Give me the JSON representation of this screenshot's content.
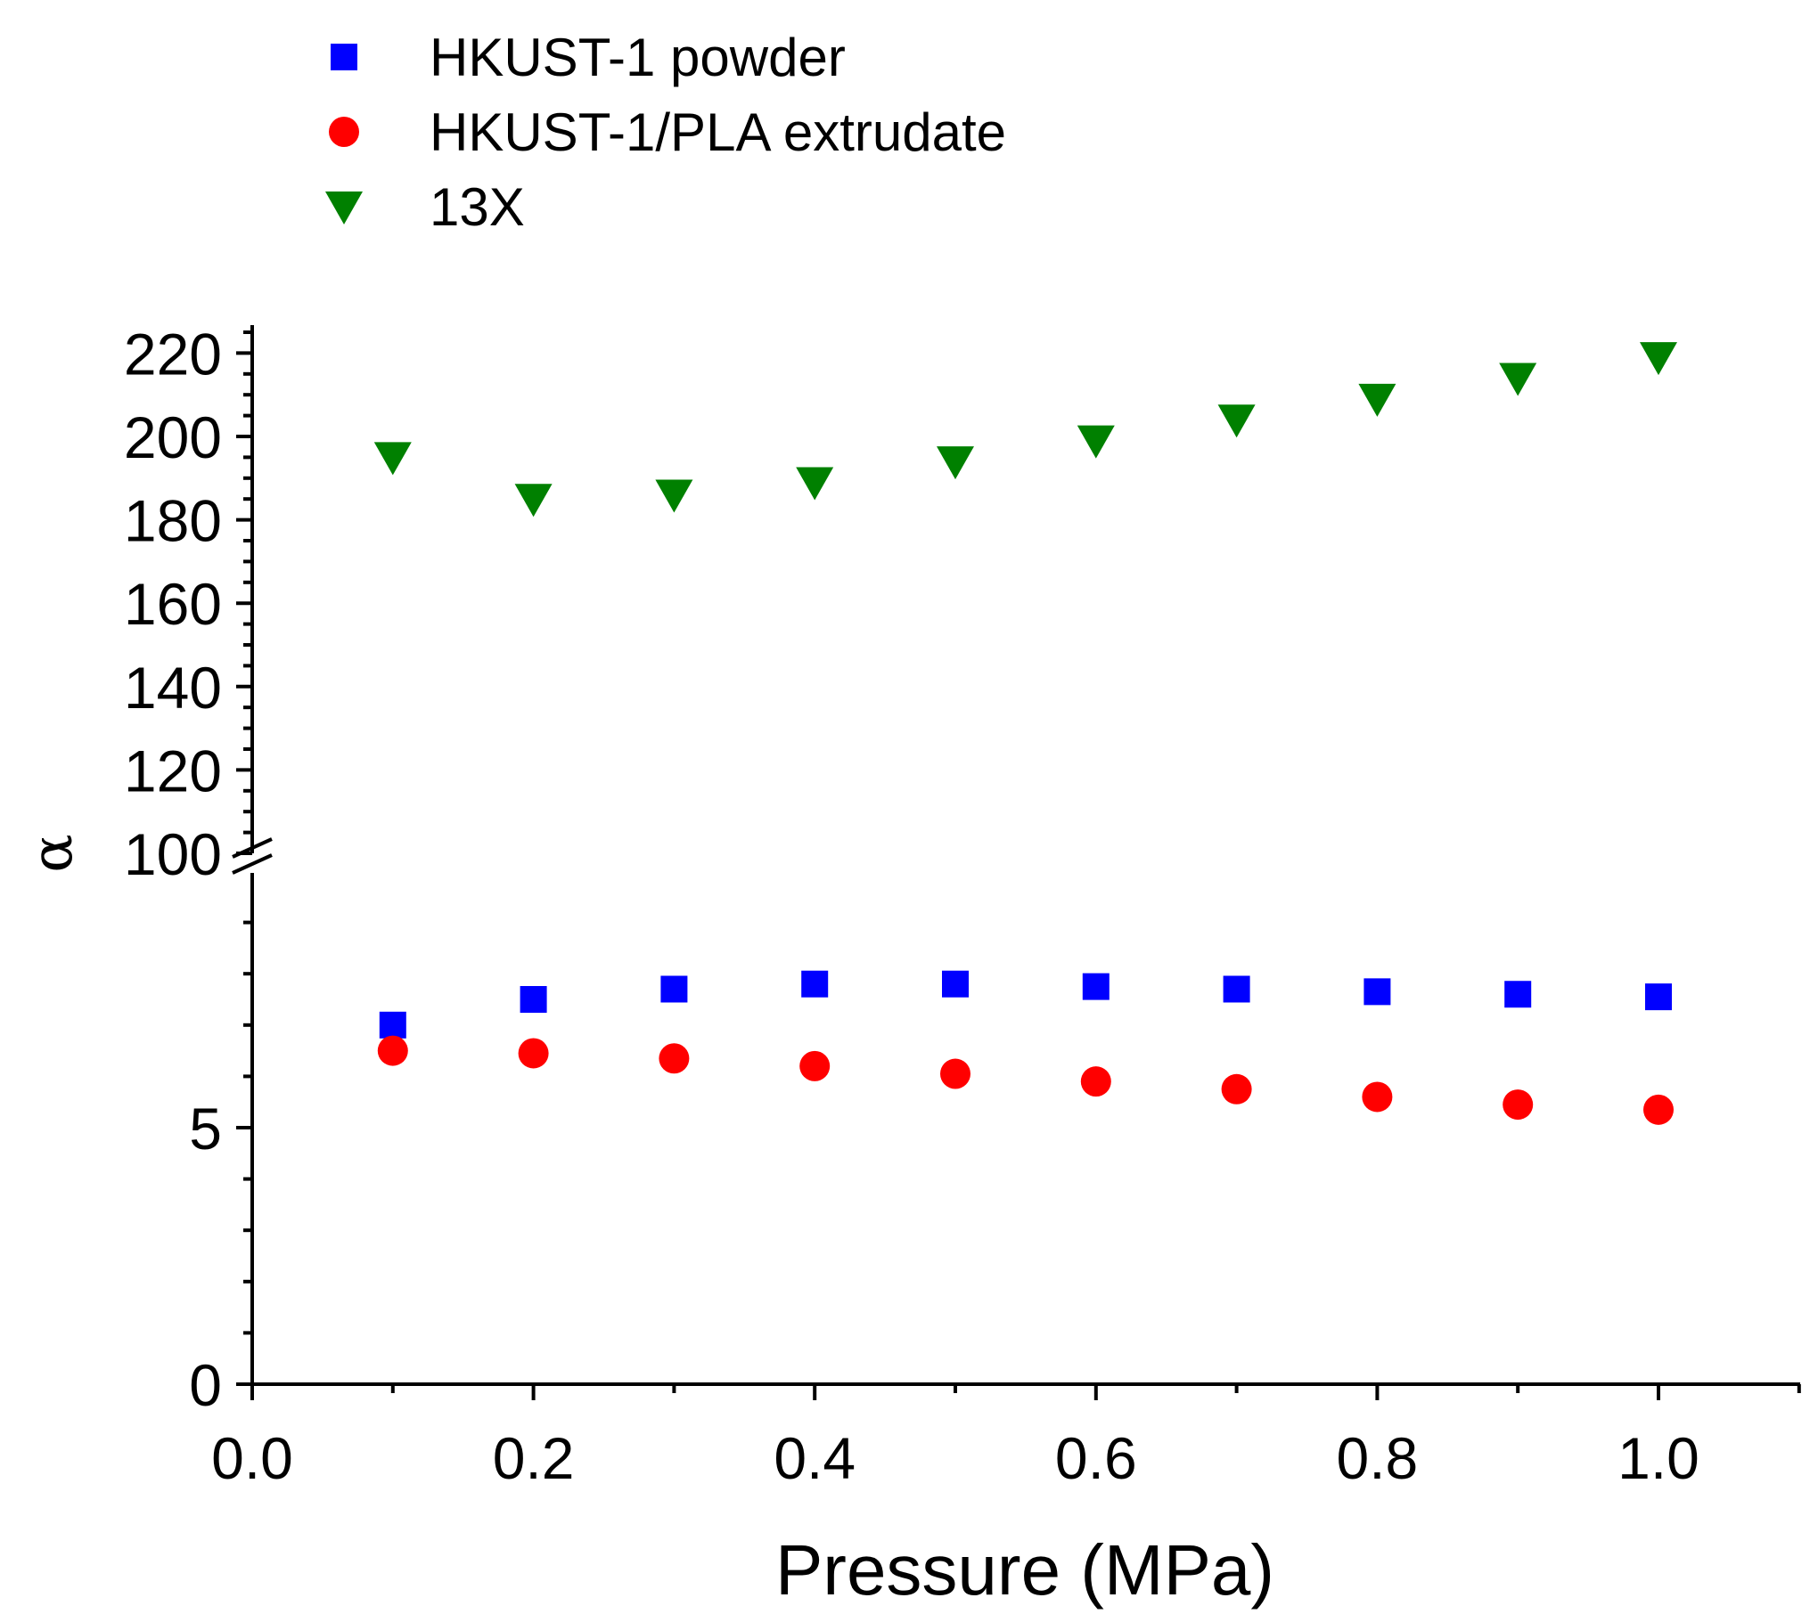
{
  "chart_data": {
    "type": "scatter",
    "xlabel": "Pressure (MPa)",
    "ylabel": "α",
    "xlim": [
      0.0,
      1.1
    ],
    "x_ticks": [
      "0.0",
      "0.2",
      "0.4",
      "0.6",
      "0.8",
      "1.0"
    ],
    "y_axis_break": {
      "lower_segment": {
        "ylim": [
          0,
          10
        ],
        "ticks": [
          "0",
          "5"
        ]
      },
      "upper_segment": {
        "ylim": [
          100,
          222
        ],
        "ticks": [
          "100",
          "120",
          "140",
          "160",
          "180",
          "200",
          "220"
        ]
      }
    },
    "x": [
      0.1,
      0.2,
      0.3,
      0.4,
      0.5,
      0.6,
      0.7,
      0.8,
      0.9,
      1.0
    ],
    "series": [
      {
        "name": "HKUST-1 powder",
        "marker": "square",
        "color": "#0000ff",
        "values": [
          7.0,
          7.5,
          7.7,
          7.8,
          7.8,
          7.75,
          7.7,
          7.65,
          7.6,
          7.55
        ]
      },
      {
        "name": "HKUST-1/PLA extrudate",
        "marker": "circle",
        "color": "#ff0000",
        "values": [
          6.5,
          6.45,
          6.35,
          6.2,
          6.05,
          5.9,
          5.75,
          5.6,
          5.45,
          5.35
        ]
      },
      {
        "name": "13X",
        "marker": "triangle-down",
        "color": "#008000",
        "values": [
          195,
          185,
          186,
          189,
          194,
          199,
          204,
          209,
          214,
          219
        ]
      }
    ],
    "legend_position": "top-left"
  }
}
